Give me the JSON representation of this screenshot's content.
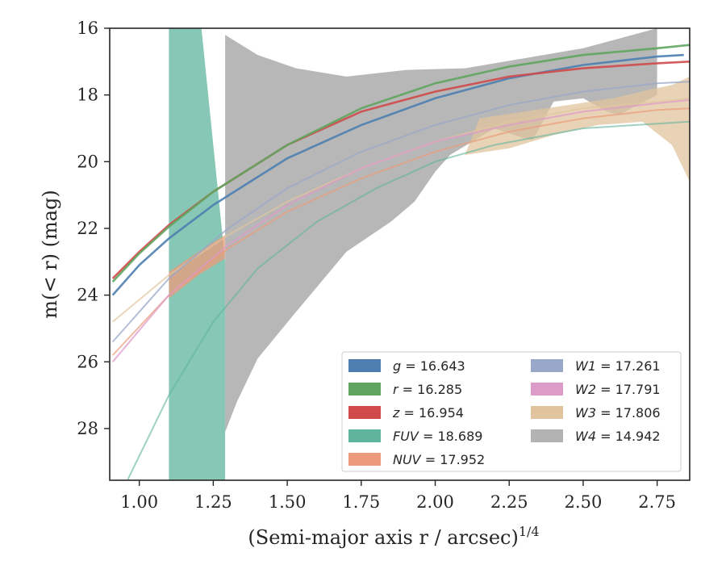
{
  "chart_data": {
    "type": "area",
    "xlabel": "(Semi-major axis r / arcsec)",
    "xlabel_sup": "1/4",
    "ylabel": "m(< r) (mag)",
    "xlim": [
      0.9,
      2.86
    ],
    "ylim": [
      29.55,
      16.0
    ],
    "y_inverted": true,
    "x_ticks": [
      "1.00",
      "1.25",
      "1.50",
      "1.75",
      "2.00",
      "2.25",
      "2.50",
      "2.75"
    ],
    "y_ticks": [
      "16",
      "18",
      "20",
      "22",
      "24",
      "26",
      "28"
    ],
    "grid": false,
    "legend_position": "lower-right",
    "legend_columns": 2,
    "series": [
      {
        "key": "W4",
        "name": "W4 = 14.942",
        "label_var": "W4",
        "label_val": "= 14.942",
        "color": "#b3b3b3",
        "upper": [
          [
            1.29,
            16.2
          ],
          [
            1.4,
            16.8
          ],
          [
            1.53,
            17.2
          ],
          [
            1.7,
            17.45
          ],
          [
            1.9,
            17.25
          ],
          [
            2.1,
            17.2
          ],
          [
            2.3,
            16.9
          ],
          [
            2.5,
            16.6
          ],
          [
            2.75,
            16.0
          ]
        ],
        "lower": [
          [
            2.75,
            18.0
          ],
          [
            2.62,
            18.6
          ],
          [
            2.58,
            18.5
          ],
          [
            2.5,
            18.1
          ],
          [
            2.4,
            18.2
          ],
          [
            2.33,
            19.35
          ],
          [
            2.3,
            19.3
          ],
          [
            2.2,
            19.0
          ],
          [
            2.05,
            19.8
          ],
          [
            2.0,
            20.3
          ],
          [
            1.93,
            21.2
          ],
          [
            1.85,
            21.8
          ],
          [
            1.7,
            22.7
          ],
          [
            1.53,
            24.5
          ],
          [
            1.4,
            25.9
          ],
          [
            1.33,
            27.2
          ],
          [
            1.29,
            28.1
          ]
        ],
        "curve": null
      },
      {
        "key": "W3",
        "name": "W3 = 17.806",
        "label_var": "W3",
        "label_val": "= 17.806",
        "color": "#e1c49e",
        "upper": [
          [
            2.15,
            18.7
          ],
          [
            2.3,
            18.5
          ],
          [
            2.45,
            18.3
          ],
          [
            2.6,
            18.1
          ],
          [
            2.72,
            17.85
          ],
          [
            2.8,
            17.7
          ],
          [
            2.86,
            17.45
          ]
        ],
        "lower": [
          [
            2.86,
            20.6
          ],
          [
            2.8,
            19.5
          ],
          [
            2.7,
            18.8
          ],
          [
            2.55,
            18.9
          ],
          [
            2.4,
            19.2
          ],
          [
            2.25,
            19.6
          ],
          [
            2.1,
            19.8
          ]
        ],
        "curve": [
          [
            0.91,
            24.8
          ],
          [
            1.1,
            23.4
          ],
          [
            1.3,
            22.2
          ],
          [
            1.5,
            21.2
          ],
          [
            1.75,
            20.2
          ],
          [
            2.0,
            19.4
          ],
          [
            2.25,
            18.8
          ],
          [
            2.5,
            18.4
          ],
          [
            2.75,
            18.2
          ],
          [
            2.86,
            18.1
          ]
        ],
        "curve_opacity": 0.7
      },
      {
        "key": "FUV",
        "name": "FUV = 18.689",
        "label_var": "FUV",
        "label_val": "= 18.689",
        "color": "#5fb49c",
        "upper": [
          [
            1.1,
            16.0
          ],
          [
            1.21,
            16.0
          ],
          [
            1.29,
            23.0
          ],
          [
            1.29,
            29.55
          ]
        ],
        "lower": [
          [
            1.1,
            29.55
          ]
        ],
        "curve": [
          [
            0.96,
            29.55
          ],
          [
            1.1,
            27.0
          ],
          [
            1.25,
            24.8
          ],
          [
            1.4,
            23.2
          ],
          [
            1.6,
            21.8
          ],
          [
            1.8,
            20.8
          ],
          [
            2.0,
            20.0
          ],
          [
            2.2,
            19.5
          ],
          [
            2.5,
            19.0
          ],
          [
            2.86,
            18.8
          ]
        ],
        "curve_opacity": 0.6
      },
      {
        "key": "NUV",
        "name": "NUV = 17.952",
        "label_var": "NUV",
        "label_val": "= 17.952",
        "color": "#eb9b7b",
        "upper": [
          [
            1.1,
            23.3
          ],
          [
            1.2,
            22.7
          ],
          [
            1.29,
            22.2
          ]
        ],
        "lower": [
          [
            1.29,
            22.9
          ],
          [
            1.2,
            23.4
          ],
          [
            1.1,
            24.1
          ]
        ],
        "curve": [
          [
            0.91,
            25.8
          ],
          [
            1.1,
            24.0
          ],
          [
            1.3,
            22.6
          ],
          [
            1.5,
            21.5
          ],
          [
            1.75,
            20.5
          ],
          [
            2.0,
            19.7
          ],
          [
            2.25,
            19.1
          ],
          [
            2.5,
            18.7
          ],
          [
            2.75,
            18.45
          ],
          [
            2.86,
            18.4
          ]
        ],
        "curve_opacity": 0.7
      },
      {
        "key": "W2",
        "name": "W2 = 17.791",
        "label_var": "W2",
        "label_val": "= 17.791",
        "color": "#dd9bc8",
        "upper": [],
        "lower": [],
        "curve": [
          [
            0.91,
            26.0
          ],
          [
            1.1,
            24.0
          ],
          [
            1.3,
            22.5
          ],
          [
            1.5,
            21.3
          ],
          [
            1.75,
            20.2
          ],
          [
            2.0,
            19.4
          ],
          [
            2.25,
            18.9
          ],
          [
            2.5,
            18.5
          ],
          [
            2.75,
            18.25
          ],
          [
            2.86,
            18.15
          ]
        ],
        "curve_opacity": 0.75
      },
      {
        "key": "W1",
        "name": "W1 = 17.261",
        "label_var": "W1",
        "label_val": "= 17.261",
        "color": "#99a8c8",
        "upper": [],
        "lower": [],
        "curve": [
          [
            0.91,
            25.4
          ],
          [
            1.1,
            23.5
          ],
          [
            1.3,
            22.0
          ],
          [
            1.5,
            20.8
          ],
          [
            1.75,
            19.7
          ],
          [
            2.0,
            18.9
          ],
          [
            2.25,
            18.3
          ],
          [
            2.5,
            17.9
          ],
          [
            2.75,
            17.65
          ],
          [
            2.86,
            17.6
          ]
        ],
        "curve_opacity": 0.75
      },
      {
        "key": "g",
        "name": "g = 16.643",
        "label_var": "g",
        "label_val": "= 16.643",
        "color": "#4c7fb0",
        "upper": [],
        "lower": [],
        "curve": [
          [
            0.91,
            24.0
          ],
          [
            1.0,
            23.1
          ],
          [
            1.1,
            22.3
          ],
          [
            1.25,
            21.3
          ],
          [
            1.5,
            19.9
          ],
          [
            1.75,
            18.9
          ],
          [
            2.0,
            18.1
          ],
          [
            2.25,
            17.5
          ],
          [
            2.5,
            17.1
          ],
          [
            2.75,
            16.85
          ],
          [
            2.84,
            16.8
          ]
        ],
        "curve_opacity": 0.9
      },
      {
        "key": "z",
        "name": "z = 16.954",
        "label_var": "z",
        "label_val": "= 16.954",
        "color": "#d04a4a",
        "upper": [],
        "lower": [],
        "curve": [
          [
            0.91,
            23.5
          ],
          [
            1.0,
            22.7
          ],
          [
            1.1,
            21.9
          ],
          [
            1.25,
            20.9
          ],
          [
            1.5,
            19.5
          ],
          [
            1.75,
            18.5
          ],
          [
            2.0,
            17.9
          ],
          [
            2.25,
            17.45
          ],
          [
            2.5,
            17.2
          ],
          [
            2.75,
            17.05
          ],
          [
            2.86,
            17.0
          ]
        ],
        "curve_opacity": 0.9
      },
      {
        "key": "r",
        "name": "r = 16.285",
        "label_var": "r",
        "label_val": "= 16.285",
        "color": "#5fa55f",
        "upper": [],
        "lower": [],
        "curve": [
          [
            0.91,
            23.6
          ],
          [
            1.0,
            22.75
          ],
          [
            1.1,
            21.95
          ],
          [
            1.25,
            20.9
          ],
          [
            1.5,
            19.5
          ],
          [
            1.75,
            18.4
          ],
          [
            2.0,
            17.65
          ],
          [
            2.25,
            17.15
          ],
          [
            2.5,
            16.8
          ],
          [
            2.75,
            16.6
          ],
          [
            2.86,
            16.5
          ]
        ],
        "curve_opacity": 0.9
      }
    ],
    "legend_order": [
      "g",
      "r",
      "z",
      "FUV",
      "NUV",
      "W1",
      "W2",
      "W3",
      "W4"
    ]
  }
}
